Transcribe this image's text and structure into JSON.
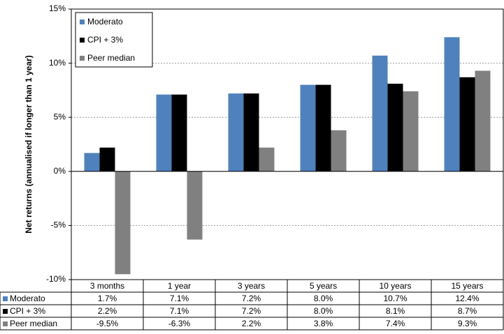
{
  "chart_data": {
    "type": "bar",
    "y_label": "Net returns (annualised if longer than 1 year)",
    "categories": [
      "3 months",
      "1 year",
      "3 years",
      "5 years",
      "10 years",
      "15 years"
    ],
    "series": [
      {
        "name": "Moderato",
        "color": "#4f81bd",
        "values": [
          1.7,
          7.1,
          7.2,
          8.0,
          10.7,
          12.4
        ],
        "value_labels": [
          "1.7%",
          "7.1%",
          "7.2%",
          "8.0%",
          "10.7%",
          "12.4%"
        ]
      },
      {
        "name": "CPI + 3%",
        "color": "#000000",
        "values": [
          2.2,
          7.1,
          7.2,
          8.0,
          8.1,
          8.7
        ],
        "value_labels": [
          "2.2%",
          "7.1%",
          "7.2%",
          "8.0%",
          "8.1%",
          "8.7%"
        ]
      },
      {
        "name": "Peer median",
        "color": "#808080",
        "values": [
          -9.5,
          -6.3,
          2.2,
          3.8,
          7.4,
          9.3
        ],
        "value_labels": [
          "-9.5%",
          "-6.3%",
          "2.2%",
          "3.8%",
          "7.4%",
          "9.3%"
        ]
      }
    ],
    "ylim": [
      -10,
      15
    ],
    "yticks": [
      {
        "value": -10,
        "label": "-10%"
      },
      {
        "value": -5,
        "label": "-5%"
      },
      {
        "value": 0,
        "label": "0%"
      },
      {
        "value": 5,
        "label": "5%"
      },
      {
        "value": 10,
        "label": "10%"
      },
      {
        "value": 15,
        "label": "15%"
      }
    ],
    "grid": true,
    "legend": "top-left"
  }
}
